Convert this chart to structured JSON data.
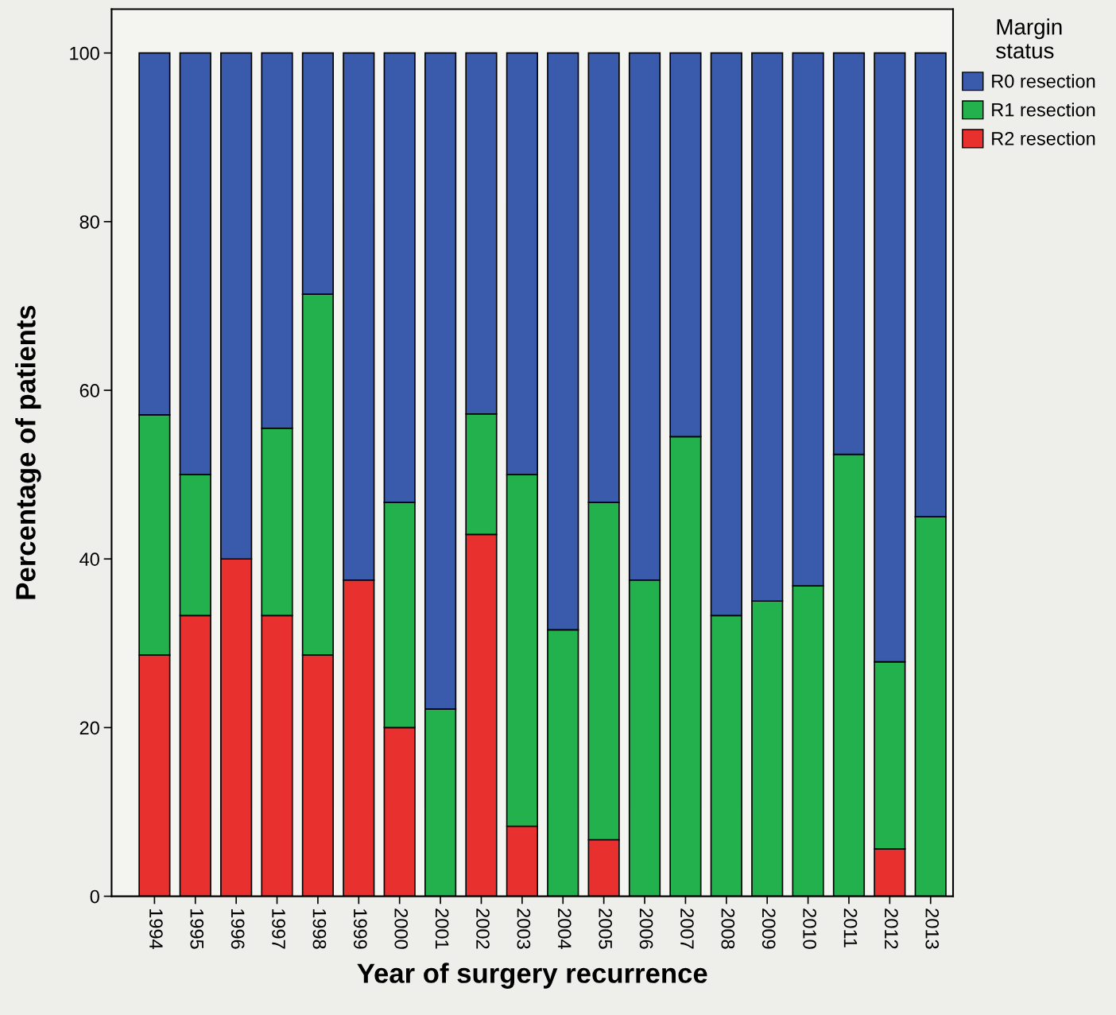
{
  "chart_data": {
    "type": "bar",
    "stacked": true,
    "xlabel": "Year of surgery recurrence",
    "ylabel": "Percentage of patients",
    "legend_title": "Margin\nstatus",
    "legend": "top right",
    "categories": [
      "1994",
      "1995",
      "1996",
      "1997",
      "1998",
      "1999",
      "2000",
      "2001",
      "2002",
      "2003",
      "2004",
      "2005",
      "2006",
      "2007",
      "2008",
      "2009",
      "2010",
      "2011",
      "2012",
      "2013"
    ],
    "series": [
      {
        "name": "R2 resection",
        "color": "#e8302f",
        "values": [
          28.6,
          33.3,
          40.0,
          33.3,
          28.6,
          37.5,
          20.0,
          null,
          42.9,
          8.3,
          null,
          6.7,
          null,
          null,
          null,
          null,
          null,
          null,
          5.6,
          null
        ]
      },
      {
        "name": "R1 resection",
        "color": "#22b14c",
        "values": [
          28.5,
          16.7,
          null,
          22.2,
          42.8,
          null,
          26.7,
          22.2,
          14.3,
          41.7,
          31.6,
          40.0,
          37.5,
          54.5,
          33.3,
          35.0,
          36.8,
          52.4,
          22.2,
          45.0
        ]
      },
      {
        "name": "R0 resection",
        "color": "#3a5bab",
        "values": [
          42.9,
          50.0,
          60.0,
          44.5,
          28.6,
          62.5,
          53.3,
          77.8,
          42.8,
          50.0,
          68.4,
          53.3,
          62.5,
          45.5,
          66.7,
          65.0,
          63.2,
          47.6,
          72.2,
          55.0
        ]
      }
    ],
    "ylim": [
      0,
      105.2
    ],
    "yticks": [
      0,
      20,
      40,
      60,
      80,
      100
    ],
    "grid": false
  }
}
